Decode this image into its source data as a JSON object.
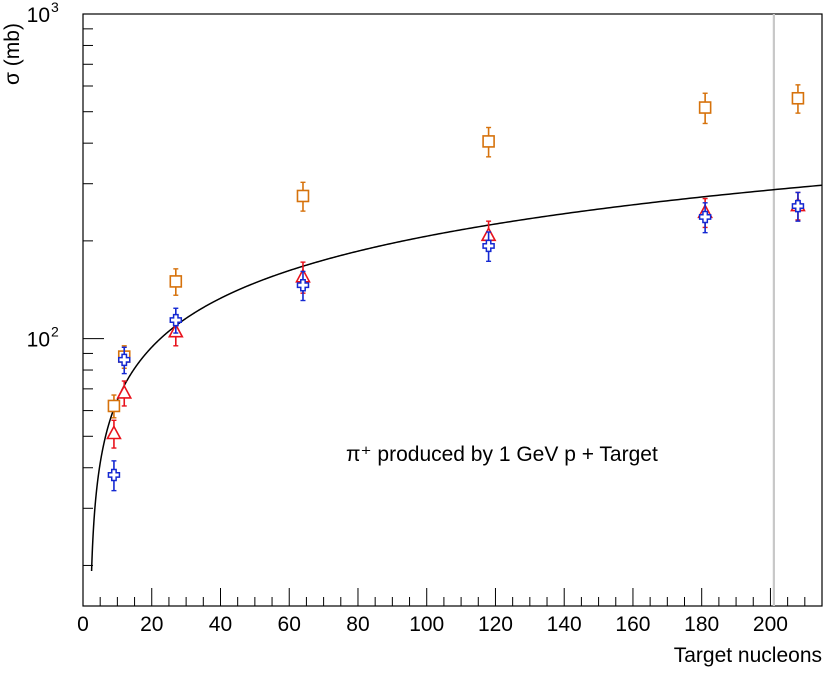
{
  "chart_data": {
    "type": "scatter",
    "title": "",
    "annotation": "π⁺ produced by 1 GeV p + Target",
    "xlabel": "Target nucleons",
    "ylabel": "σ (mb)",
    "xlim": [
      0,
      215
    ],
    "ylim": [
      15,
      1000
    ],
    "yscale": "log",
    "x_ticks": [
      "0",
      "20",
      "40",
      "60",
      "80",
      "100",
      "120",
      "140",
      "160",
      "180",
      "200"
    ],
    "y_decades": [
      {
        "value": 100,
        "base": "10",
        "exp": "2"
      },
      {
        "value": 1000,
        "base": "10",
        "exp": "3"
      }
    ],
    "vertical_line_x": 201,
    "series": [
      {
        "name": "squares",
        "marker": "square",
        "color": "#d6720c",
        "points": [
          {
            "x": 9,
            "y": 62,
            "err": 5
          },
          {
            "x": 12,
            "y": 88,
            "err": 7
          },
          {
            "x": 27,
            "y": 150,
            "err": 14
          },
          {
            "x": 64,
            "y": 275,
            "err": 28
          },
          {
            "x": 118,
            "y": 405,
            "err": 42
          },
          {
            "x": 181,
            "y": 515,
            "err": 55
          },
          {
            "x": 208,
            "y": 550,
            "err": 55
          }
        ]
      },
      {
        "name": "triangles",
        "marker": "triangle",
        "color": "#e8121c",
        "points": [
          {
            "x": 9,
            "y": 51,
            "err": 5
          },
          {
            "x": 12,
            "y": 68,
            "err": 6
          },
          {
            "x": 27,
            "y": 105,
            "err": 10
          },
          {
            "x": 64,
            "y": 155,
            "err": 17
          },
          {
            "x": 118,
            "y": 208,
            "err": 22
          },
          {
            "x": 181,
            "y": 245,
            "err": 25
          },
          {
            "x": 208,
            "y": 257,
            "err": 25
          }
        ]
      },
      {
        "name": "crosses",
        "marker": "cross",
        "color": "#1428d2",
        "points": [
          {
            "x": 9,
            "y": 38,
            "err": 4
          },
          {
            "x": 12,
            "y": 86,
            "err": 8
          },
          {
            "x": 27,
            "y": 114,
            "err": 10
          },
          {
            "x": 64,
            "y": 146,
            "err": 15
          },
          {
            "x": 118,
            "y": 193,
            "err": 20
          },
          {
            "x": 181,
            "y": 237,
            "err": 25
          },
          {
            "x": 208,
            "y": 256,
            "err": 26
          }
        ]
      }
    ],
    "curve": {
      "name": "fit",
      "color": "#000000",
      "form": "y = a*(x-x0)^p",
      "a": 24.4,
      "x0": 1.9,
      "p": 0.466,
      "x_start": 2.5,
      "x_end": 215
    }
  }
}
